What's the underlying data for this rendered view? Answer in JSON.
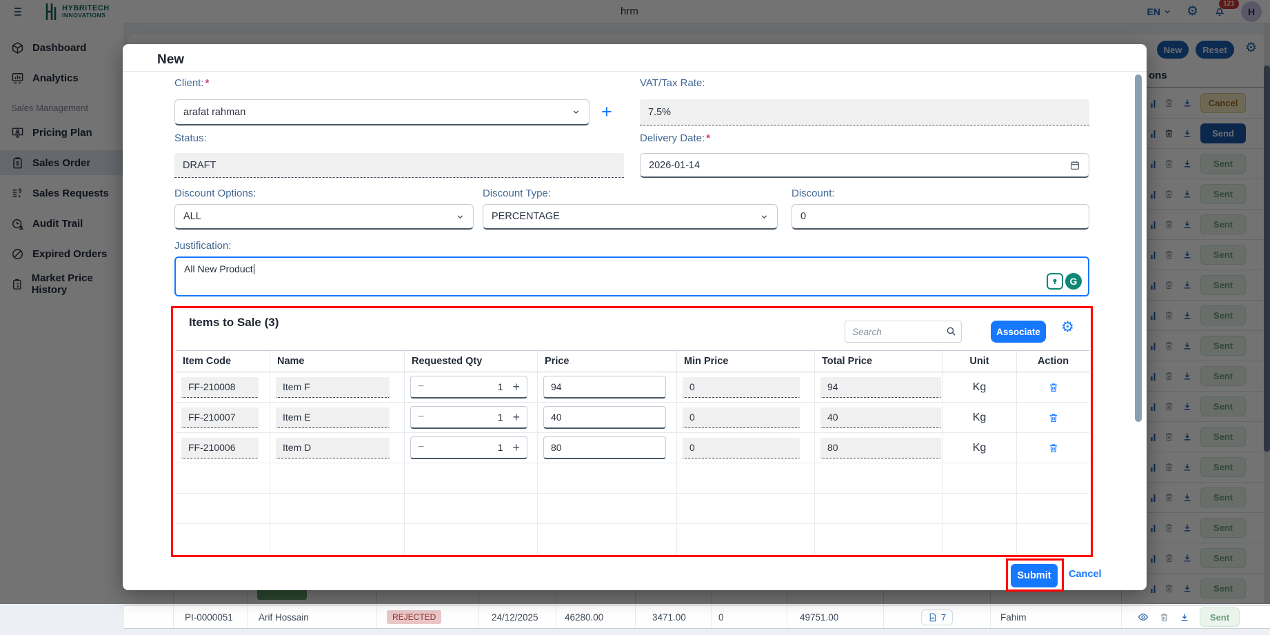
{
  "colors": {
    "accent_blue": "#1677ff",
    "link_blue": "#1d5fad",
    "annotation_red": "#fe0000",
    "brand_teal": "#10655c",
    "notification_red": "#cf3535",
    "rejected_bg": "#eac6c6",
    "rejected_text": "#8a3434",
    "sent_green": "#6f9e7d",
    "send_blue": "#1b57a8",
    "cancel_yellow": "#f3e9c0"
  },
  "header": {
    "logo_line1": "HYBRITECH",
    "logo_line2": "INNOVATIONS",
    "center_title": "hrm",
    "language": "EN",
    "notification_count": "121",
    "avatar_initial": "H"
  },
  "sidebar": {
    "section_label": "Sales Management",
    "items": [
      {
        "label": "Dashboard",
        "icon": "package-icon",
        "active": false
      },
      {
        "label": "Analytics",
        "icon": "chart-icon",
        "active": false
      },
      {
        "label": "Pricing Plan",
        "icon": "monitor-icon",
        "active": false
      },
      {
        "label": "Sales Order",
        "icon": "clipboard-dollar-icon",
        "active": true
      },
      {
        "label": "Sales Requests",
        "icon": "list-dollar-icon",
        "active": false
      },
      {
        "label": "Audit Trail",
        "icon": "clock-user-icon",
        "active": false
      },
      {
        "label": "Expired Orders",
        "icon": "slash-circle-icon",
        "active": false
      },
      {
        "label": "Market Price History",
        "icon": "clipboard-list-icon",
        "active": false
      }
    ]
  },
  "background": {
    "toolbar": {
      "new_button": "New",
      "reset_button": "Reset"
    },
    "actions_header_partial": "ons",
    "action_column": {
      "cancel_label": "Cancel",
      "send_label": "Send",
      "sent_label": "Sent",
      "sent_count": 15
    },
    "bottom_row": {
      "id": "PI-0000051",
      "client": "Arif Hossain",
      "status": "REJECTED",
      "date": "24/12/2025",
      "amount": "46280.00",
      "vat": "3471.00",
      "discount": "0",
      "total": "49751.00",
      "items_count": "7",
      "creator": "Fahim",
      "sent_label": "Sent"
    }
  },
  "modal": {
    "title": "New",
    "required_mark": "*",
    "fields": {
      "client": {
        "label": "Client:",
        "value": "arafat rahman"
      },
      "vat": {
        "label": "VAT/Tax Rate:",
        "value": "7.5%"
      },
      "status": {
        "label": "Status:",
        "value": "DRAFT"
      },
      "delivery_date": {
        "label": "Delivery Date:",
        "value": "2026-01-14"
      },
      "discount_options": {
        "label": "Discount Options:",
        "value": "ALL"
      },
      "discount_type": {
        "label": "Discount Type:",
        "value": "PERCENTAGE"
      },
      "discount": {
        "label": "Discount:",
        "value": "0"
      },
      "justification": {
        "label": "Justification:",
        "value": "All New Product"
      }
    },
    "items": {
      "title": "Items to Sale (3)",
      "search_placeholder": "Search",
      "associate_button": "Associate",
      "columns": [
        "Item Code",
        "Name",
        "Requested Qty",
        "Price",
        "Min Price",
        "Total Price",
        "Unit",
        "Action"
      ],
      "rows": [
        {
          "code": "FF-210008",
          "name": "Item F",
          "qty": "1",
          "price": "94",
          "min_price": "0",
          "total_price": "94",
          "unit": "Kg"
        },
        {
          "code": "FF-210007",
          "name": "Item E",
          "qty": "1",
          "price": "40",
          "min_price": "0",
          "total_price": "40",
          "unit": "Kg"
        },
        {
          "code": "FF-210006",
          "name": "Item D",
          "qty": "1",
          "price": "80",
          "min_price": "0",
          "total_price": "80",
          "unit": "Kg"
        }
      ]
    },
    "footer": {
      "submit": "Submit",
      "cancel": "Cancel"
    }
  }
}
